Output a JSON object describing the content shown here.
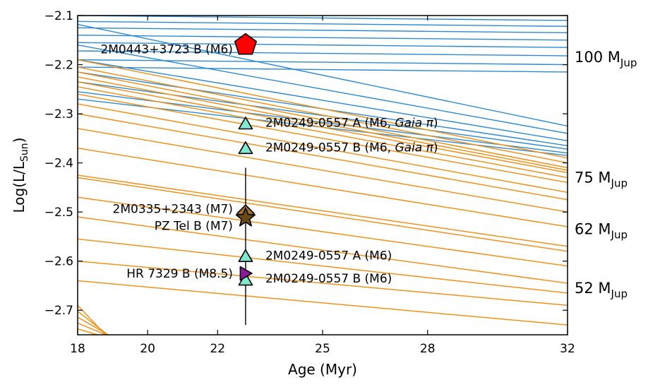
{
  "chart_data": {
    "type": "scatter",
    "xlabel": "Age (Myr)",
    "ylabel": "Log(L/L",
    "ylabel_sub": "Sun",
    "ylabel_close": ")",
    "xlim": [
      18,
      32
    ],
    "ylim": [
      -2.75,
      -2.1
    ],
    "x_ticks": [
      18,
      20,
      22,
      25,
      28,
      32
    ],
    "x_tick_labels": [
      "18",
      "20",
      "22",
      "25",
      "28",
      "32"
    ],
    "y_ticks": [
      -2.1,
      -2.2,
      -2.3,
      -2.4,
      -2.5,
      -2.6,
      -2.7
    ],
    "y_tick_labels": [
      "−2.1",
      "−2.2",
      "−2.3",
      "−2.4",
      "−2.5",
      "−2.6",
      "−2.7"
    ],
    "grid": false,
    "colors": {
      "blue_tracks": "#2a8ad4",
      "orange_tracks": "#f0921a",
      "frame": "#000000"
    },
    "mass_labels": [
      {
        "main": "100 M",
        "sub": "Jup",
        "y": -2.185
      },
      {
        "main": "75 M",
        "sub": "Jup",
        "y": -2.43
      },
      {
        "main": "62 M",
        "sub": "Jup",
        "y": -2.535
      },
      {
        "main": "52 M",
        "sub": "Jup",
        "y": -2.655
      }
    ],
    "blue_tracks": [
      [
        -2.1,
        -2.11
      ],
      [
        -2.112,
        -2.122
      ],
      [
        -2.125,
        -2.135
      ],
      [
        -2.14,
        -2.15
      ],
      [
        -2.155,
        -2.165
      ],
      [
        -2.172,
        -2.182
      ],
      [
        -2.19,
        -2.2
      ],
      [
        -2.205,
        -2.215
      ],
      [
        -2.118,
        -2.325
      ],
      [
        -2.16,
        -2.34
      ],
      [
        -2.19,
        -2.355
      ],
      [
        -2.215,
        -2.365
      ],
      [
        -2.235,
        -2.372
      ],
      [
        -2.255,
        -2.38
      ],
      [
        -2.27,
        -2.385
      ]
    ],
    "orange_tracks": [
      [
        -2.19,
        -2.39
      ],
      [
        -2.205,
        -2.4
      ],
      [
        -2.215,
        -2.41
      ],
      [
        -2.225,
        -2.415
      ],
      [
        -2.235,
        -2.42
      ],
      [
        -2.245,
        -2.43
      ],
      [
        -2.26,
        -2.44
      ],
      [
        -2.28,
        -2.46
      ],
      [
        -2.3,
        -2.475
      ],
      [
        -2.33,
        -2.5
      ],
      [
        -2.37,
        -2.53
      ],
      [
        -2.425,
        -2.57
      ],
      [
        -2.43,
        -2.58
      ],
      [
        -2.47,
        -2.61
      ],
      [
        -2.51,
        -2.645
      ],
      [
        -2.555,
        -2.665
      ],
      [
        -2.6,
        -2.69
      ],
      [
        -2.64,
        -2.73
      ]
    ],
    "vertical_line": {
      "x": 22.8,
      "y_range": [
        -2.73,
        -2.41
      ]
    },
    "points": [
      {
        "label": "2M0443+3723 B (M6)",
        "x": 22.8,
        "y": -2.16,
        "marker": "pentagon",
        "color": "#ff0000",
        "label_side": "left",
        "label_y": -2.168
      },
      {
        "label": "2M0249-0557 A (M6, ",
        "label_italic": "Gaia π",
        "label_end": ")",
        "x": 22.8,
        "y": -2.32,
        "marker": "triangle",
        "color": "#7fe8d0",
        "label_side": "right",
        "label_y": -2.318
      },
      {
        "label": "2M0249-0557 B (M6, ",
        "label_italic": "Gaia π",
        "label_end": ")",
        "x": 22.8,
        "y": -2.37,
        "marker": "triangle",
        "color": "#7fe8d0",
        "label_side": "right",
        "label_y": -2.368
      },
      {
        "label": "2M0335+2343 (M7)",
        "x": 22.8,
        "y": -2.503,
        "marker": "diamond",
        "color": "#a07030",
        "label_side": "left",
        "label_y": -2.493
      },
      {
        "label": "PZ Tel B (M7)",
        "x": 22.8,
        "y": -2.512,
        "marker": "star",
        "color": "#6b4a1a",
        "label_side": "left",
        "label_y": -2.528
      },
      {
        "label": "2M0249-0557 A (M6)",
        "x": 22.8,
        "y": -2.59,
        "marker": "triangle",
        "color": "#7fe8d0",
        "label_side": "right",
        "label_y": -2.588
      },
      {
        "label": "HR 7329 B (M8.5)",
        "x": 22.8,
        "y": -2.625,
        "marker": "right-triangle",
        "color": "#8b1a9e",
        "label_side": "left",
        "label_y": -2.625
      },
      {
        "label": "2M0249-0557 B (M6)",
        "x": 22.8,
        "y": -2.638,
        "marker": "triangle",
        "color": "#7fe8d0",
        "label_side": "right",
        "label_y": -2.635
      }
    ]
  }
}
